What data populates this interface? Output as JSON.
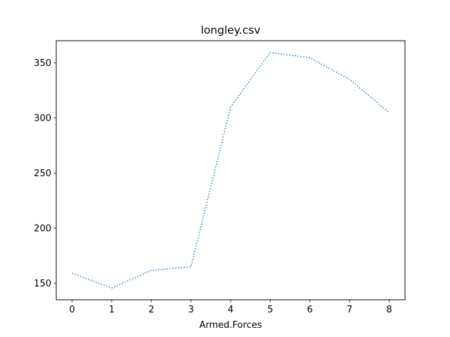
{
  "chart_data": {
    "type": "line",
    "title": "longley.csv",
    "xlabel": "Armed.Forces",
    "ylabel": "",
    "x": [
      0,
      1,
      2,
      3,
      4,
      5,
      6,
      7,
      8
    ],
    "series": [
      {
        "values": [
          159.0,
          145.6,
          161.6,
          165.0,
          309.9,
          359.4,
          354.7,
          335.0,
          304.8
        ],
        "color": "#1f77b4",
        "line_style": "dotted"
      }
    ],
    "x_ticks": [
      "0",
      "1",
      "2",
      "3",
      "4",
      "5",
      "6",
      "7",
      "8"
    ],
    "y_ticks": [
      "150",
      "200",
      "250",
      "300",
      "350"
    ],
    "xlim": [
      -0.4,
      8.4
    ],
    "ylim": [
      134.9,
      370.1
    ],
    "grid": false,
    "legend": "none"
  }
}
